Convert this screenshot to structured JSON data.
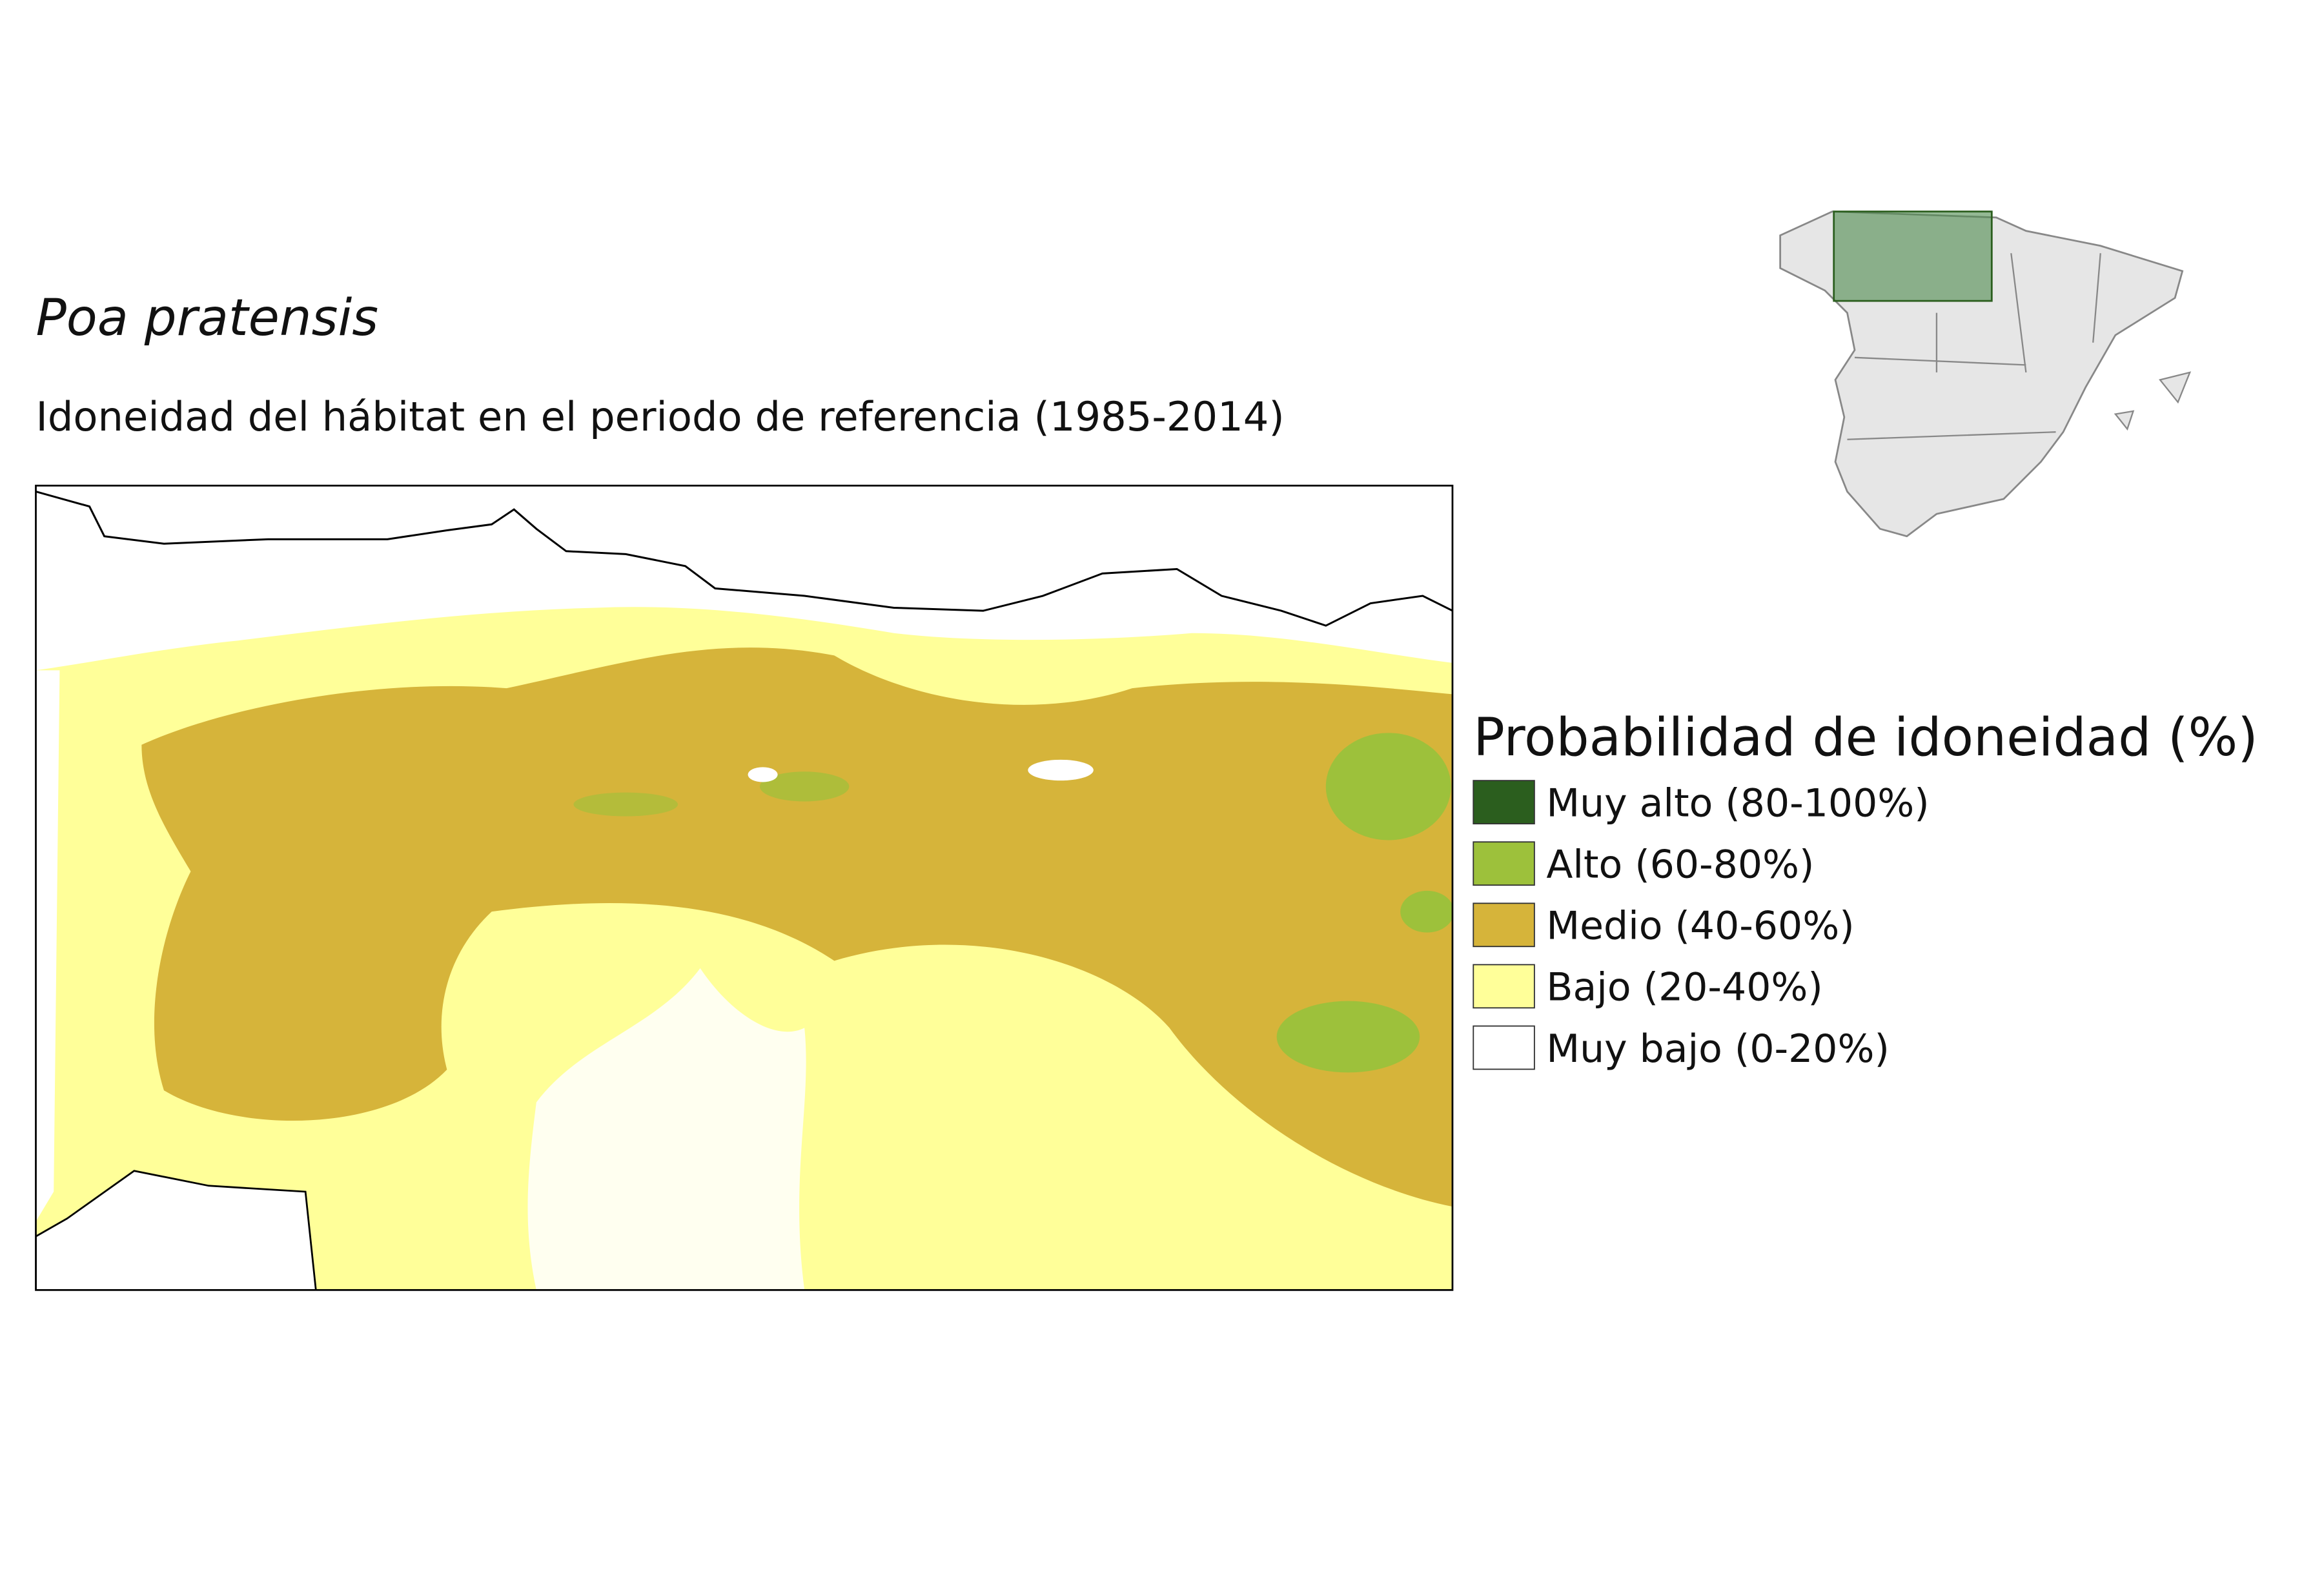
{
  "title": "Poa pratensis",
  "subtitle": "Idoneidad del hábitat en el periodo de referencia (1985-2014)",
  "legend": {
    "title": "Probabilidad de idoneidad (%)",
    "items": [
      {
        "label": "Muy alto (80-100%)",
        "color": "#2b5e1e"
      },
      {
        "label": "Alto (60-80%)",
        "color": "#9dc13b"
      },
      {
        "label": "Medio (40-60%)",
        "color": "#d6b43a"
      },
      {
        "label": "Bajo (20-40%)",
        "color": "#ffff99"
      },
      {
        "label": "Muy bajo (0-20%)",
        "color": "#ffffff"
      }
    ]
  }
}
